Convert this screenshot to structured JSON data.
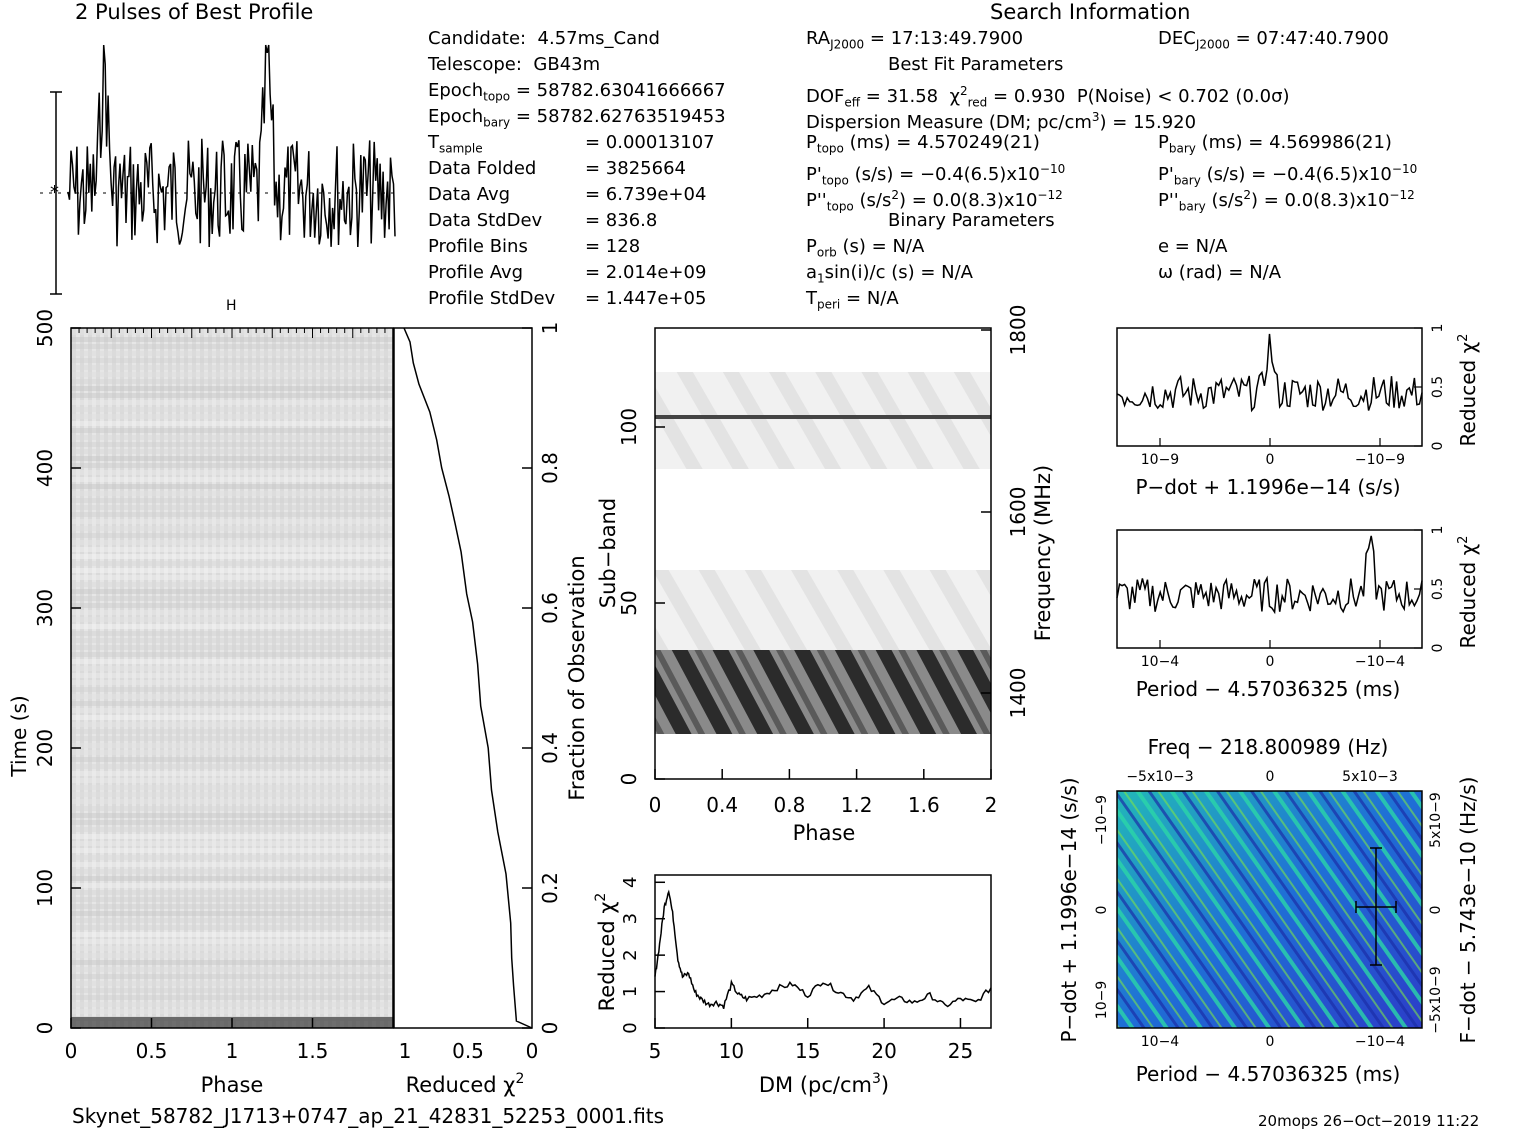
{
  "header": {
    "profile_title": "2 Pulses of Best Profile",
    "search_title": "Search Information"
  },
  "info_left": [
    {
      "label": "Candidate:",
      "value": "4.57ms_Cand"
    },
    {
      "label": "Telescope:",
      "value": "GB43m"
    },
    {
      "label": "Epoch",
      "sub": "topo",
      "value": "= 58782.63041666667"
    },
    {
      "label": "Epoch",
      "sub": "bary",
      "value": "= 58782.62763519453"
    },
    {
      "label": "T",
      "sub": "sample",
      "value": "=   0.00013107"
    },
    {
      "label": "Data Folded",
      "value": "=   3825664"
    },
    {
      "label": "Data Avg",
      "value": "=   6.739e+04"
    },
    {
      "label": "Data StdDev",
      "value": "=   836.8"
    },
    {
      "label": "Profile Bins",
      "value": "=   128"
    },
    {
      "label": "Profile Avg",
      "value": "=   2.014e+09"
    },
    {
      "label": "Profile StdDev",
      "value": "=   1.447e+05"
    }
  ],
  "info_mid": {
    "ra_label": "RA",
    "ra_sub": "J2000",
    "ra_value": "= 17:13:49.7900",
    "bestfit_title": "Best Fit Parameters",
    "dof": "DOF",
    "dof_sub": "eff",
    "dof_value": "= 31.58",
    "chi_label": "χ",
    "chi_sup": "2",
    "chi_sub": "red",
    "chi_value": "= 0.930",
    "pnoise": "P(Noise) < 0.702   (0.0σ)",
    "dm_line": "Dispersion Measure (DM; pc/cm",
    "dm_sup": "3",
    "dm_value": ") = 15.920",
    "ptopo_label": "P",
    "ptopo_sub": "topo",
    "ptopo_value": "(ms)  =   4.570249(21)",
    "pdtopo_label": "P'",
    "pdtopo_sub": "topo",
    "pdtopo_value": "(s/s) = −0.4(6.5)x10",
    "pdtopo_exp": "−10",
    "pddtopo_label": "P''",
    "pddtopo_sub": "topo",
    "pddtopo_value": "(s/s",
    "pddtopo_unitsup": "2",
    "pddtopo_value2": ") = 0.0(8.3)x10",
    "pddtopo_exp": "−12",
    "binary_title": "Binary Parameters",
    "porb": "P",
    "porb_sub": "orb",
    "porb_value": "(s) = N/A",
    "asini": "a",
    "asini_sub": "1",
    "asini_value": "sin(i)/c (s) = N/A",
    "tperi": "T",
    "tperi_sub": "peri",
    "tperi_value": "= N/A"
  },
  "info_right": {
    "dec_label": "DEC",
    "dec_sub": "J2000",
    "dec_value": "= 07:47:40.7900",
    "pbary_label": "P",
    "pbary_sub": "bary",
    "pbary_value": "(ms)  =   4.569986(21)",
    "pdbary_label": "P'",
    "pdbary_sub": "bary",
    "pdbary_value": "(s/s) = −0.4(6.5)x10",
    "pdbary_exp": "−10",
    "pddbary_label": "P''",
    "pddbary_sub": "bary",
    "pddbary_value": "(s/s",
    "pddbary_unitsup": "2",
    "pddbary_value2": ") = 0.0(8.3)x10",
    "pddbary_exp": "−12",
    "e_value": "e = N/A",
    "omega_value": "ω (rad) = N/A"
  },
  "footer": {
    "filename": "Skynet_58782_J1713+0747_ap_21_42831_52253_0001.fits",
    "stamp": "20mops 26−Oct−2019 11:22"
  },
  "chart_data": [
    {
      "type": "line",
      "title": "2 Pulses of Best Profile",
      "x_range": [
        0,
        2
      ],
      "note_values": "noisy profile; two pulses; ~256 points normalized",
      "series": [
        {
          "values": []
        }
      ]
    },
    {
      "type": "heatmap",
      "xlabel": "Phase",
      "ylabel": "Time (s)",
      "xlim": [
        0,
        2
      ],
      "ylim": [
        0,
        500
      ],
      "x_ticks": [
        "0",
        "0.5",
        "1",
        "1.5"
      ],
      "y_ticks": [
        "0",
        "100",
        "200",
        "300",
        "400",
        "500"
      ]
    },
    {
      "type": "line",
      "xlabel": "Reduced χ2",
      "ylabel": "Fraction of Observation",
      "xlim": [
        1,
        0
      ],
      "ylim": [
        0,
        1
      ],
      "x_ticks": [
        "1",
        "0.5",
        "0"
      ],
      "y_ticks": [
        "0",
        "0.2",
        "0.4",
        "0.6",
        "0.8",
        "1"
      ],
      "series": [
        {
          "x": [
            0.12,
            0.14,
            0.16,
            0.18,
            0.22,
            0.27,
            0.32,
            0.36,
            0.4,
            0.44,
            0.48,
            0.52,
            0.56,
            0.6,
            0.64,
            0.7,
            0.76,
            0.82,
            0.88,
            0.92,
            0.95,
            1.0
          ],
          "y": [
            0.01,
            0.06,
            0.1,
            0.15,
            0.22,
            0.28,
            0.34,
            0.4,
            0.46,
            0.52,
            0.58,
            0.62,
            0.68,
            0.72,
            0.76,
            0.8,
            0.84,
            0.88,
            0.92,
            0.95,
            0.98,
            1.0
          ]
        }
      ]
    },
    {
      "type": "heatmap",
      "xlabel": "Phase",
      "ylabel": "Sub-band",
      "y2label": "Frequency (MHz)",
      "xlim": [
        0,
        2
      ],
      "ylim": [
        0,
        128
      ],
      "x_ticks": [
        "0",
        "0.4",
        "0.8",
        "1.2",
        "1.6",
        "2"
      ],
      "y_ticks": [
        "0",
        "50",
        "100"
      ],
      "y2_ticks": [
        "1400",
        "1600",
        "1800"
      ]
    },
    {
      "type": "line",
      "xlabel": "DM (pc/cm3)",
      "ylabel": "Reduced χ2",
      "xlim": [
        5,
        27
      ],
      "ylim": [
        0,
        4.2
      ],
      "x_ticks": [
        "5",
        "10",
        "15",
        "20",
        "25"
      ],
      "y_ticks": [
        "0",
        "1",
        "2",
        "3",
        "4"
      ],
      "series": [
        {
          "x": [
            5.0,
            5.3,
            5.6,
            5.9,
            6.2,
            6.5,
            6.8,
            7.2,
            7.6,
            8.0,
            8.5,
            9.0,
            9.5,
            10.0,
            10.5,
            11.0,
            12.0,
            13.0,
            14.0,
            15.0,
            16.0,
            17.0,
            18.0,
            19.0,
            20.0,
            21.0,
            22.0,
            23.0,
            24.0,
            25.0,
            26.0,
            27.0
          ],
          "y": [
            1.4,
            2.3,
            3.3,
            3.8,
            3.0,
            1.9,
            1.4,
            1.5,
            1.0,
            0.8,
            0.65,
            0.7,
            0.6,
            1.2,
            0.9,
            0.8,
            0.9,
            1.1,
            1.2,
            0.9,
            1.3,
            1.0,
            0.8,
            1.1,
            0.7,
            0.8,
            0.7,
            0.9,
            0.6,
            0.8,
            0.7,
            1.1
          ]
        }
      ]
    },
    {
      "type": "line",
      "xlabel": "P-dot + 1.1996e-14 (s/s)",
      "ylabel": "Reduced χ2",
      "ylim": [
        0,
        1
      ],
      "x_ticks": [
        "10−9",
        "0",
        "−10−9"
      ],
      "y_ticks": [
        "0",
        "0.5",
        "1"
      ]
    },
    {
      "type": "line",
      "xlabel": "Period − 4.57036325 (ms)",
      "ylabel": "Reduced χ2",
      "ylim": [
        0,
        1
      ],
      "x_ticks": [
        "10−4",
        "0",
        "−10−4"
      ],
      "y_ticks": [
        "0",
        "0.5",
        "1"
      ]
    },
    {
      "type": "heatmap",
      "title": "Freq − 218.800989 (Hz)",
      "xlabel": "Period − 4.57036325 (ms)",
      "ylabel": "P-dot + 1.1996e-14 (s/s)",
      "y2label": "F-dot − 5.743e-10 (Hz/s)",
      "top_ticks": [
        "−5x10−3",
        "0",
        "5x10−3"
      ],
      "x_ticks": [
        "10−4",
        "0",
        "−10−4"
      ],
      "y_ticks": [
        "10−9",
        "0",
        "−10−9"
      ],
      "y2_ticks": [
        "−5x10−9",
        "0",
        "5x10−9"
      ]
    }
  ]
}
